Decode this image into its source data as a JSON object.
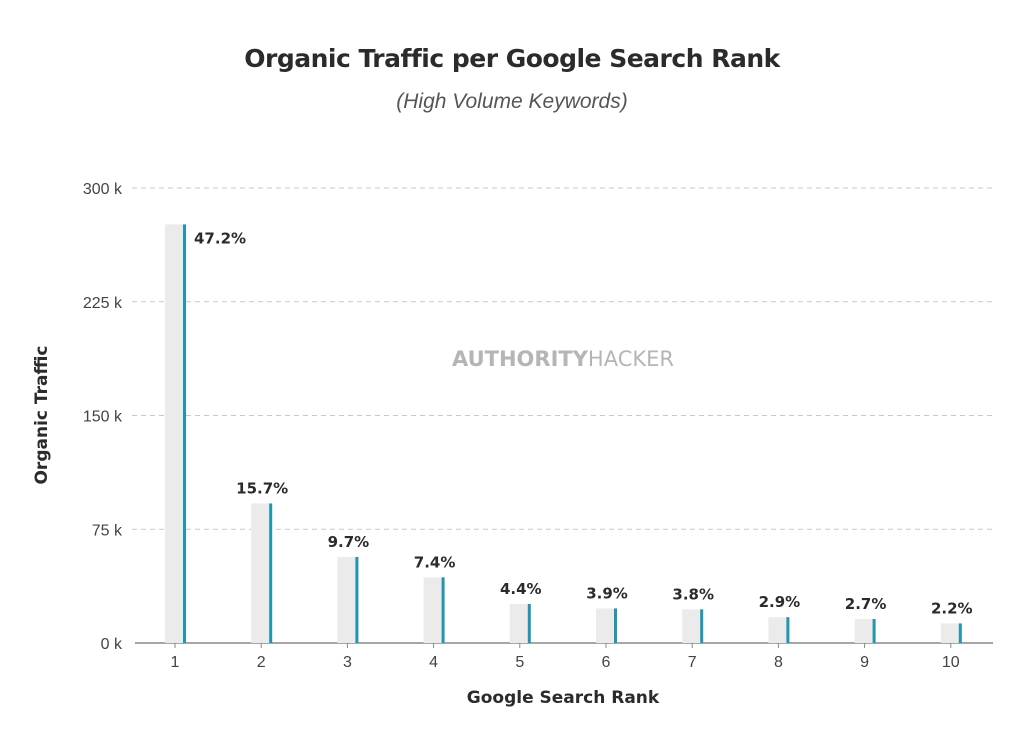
{
  "chart_data": {
    "type": "bar",
    "title": "Organic Traffic per Google Search Rank",
    "subtitle": "(High Volume Keywords)",
    "xlabel": "Google Search Rank",
    "ylabel": "Organic Traffic",
    "categories": [
      "1",
      "2",
      "3",
      "4",
      "5",
      "6",
      "7",
      "8",
      "9",
      "10"
    ],
    "values": [
      276000,
      92000,
      56700,
      43300,
      25700,
      22800,
      22200,
      17000,
      15800,
      12900
    ],
    "data_labels": [
      "47.2%",
      "15.7%",
      "9.7%",
      "7.4%",
      "4.4%",
      "3.9%",
      "3.8%",
      "2.9%",
      "2.7%",
      "2.2%"
    ],
    "ylim": [
      0,
      300000
    ],
    "yticks": [
      0,
      75000,
      150000,
      225000,
      300000
    ],
    "ytick_labels": [
      "0  k",
      "75  k",
      "150  k",
      "225  k",
      "300  k"
    ],
    "grid": true,
    "watermark": {
      "bold": "AUTHORITY",
      "light": "HACKER"
    },
    "colors": {
      "bar": "#ebebeb",
      "accent": "#2196b0",
      "grid": "#c8c8c8",
      "axis": "#888888"
    }
  }
}
